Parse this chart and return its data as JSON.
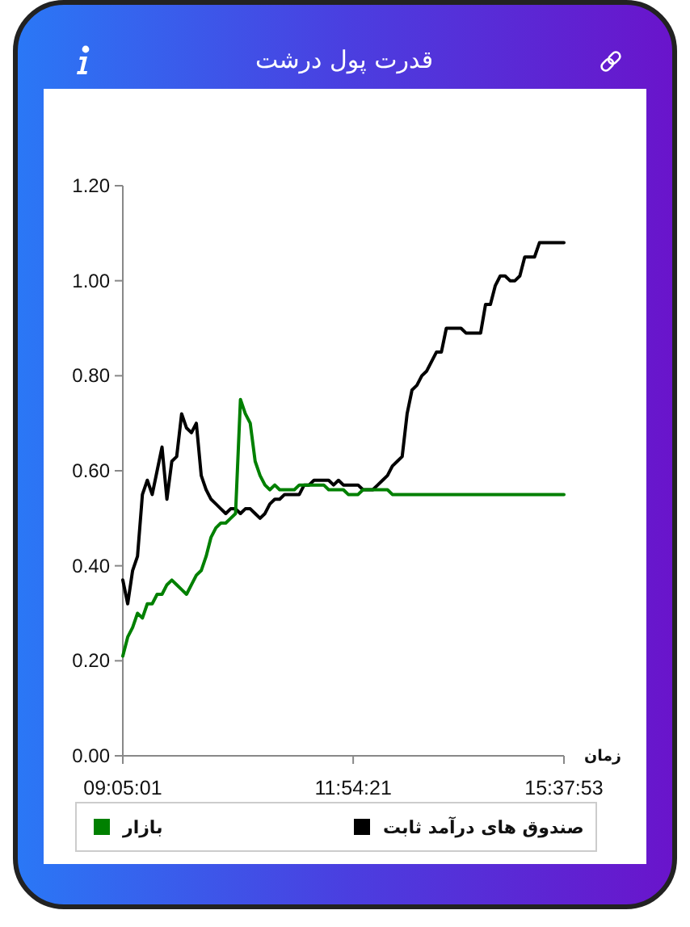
{
  "chart_data": {
    "type": "line",
    "title": "قدرت پول درشت",
    "xlabel": "زمان",
    "categories": [
      "09:05:01",
      null,
      null,
      null,
      null,
      null,
      null,
      null,
      null,
      null,
      null,
      null,
      null,
      null,
      null,
      null,
      null,
      null,
      null,
      null,
      null,
      null,
      null,
      null,
      null,
      null,
      null,
      null,
      null,
      null,
      null,
      null,
      null,
      null,
      null,
      null,
      null,
      null,
      null,
      null,
      null,
      null,
      null,
      null,
      null,
      null,
      null,
      "11:54:21",
      null,
      null,
      null,
      null,
      null,
      null,
      null,
      null,
      null,
      null,
      null,
      null,
      null,
      null,
      null,
      null,
      null,
      null,
      null,
      null,
      null,
      null,
      null,
      null,
      null,
      null,
      null,
      null,
      null,
      null,
      null,
      null,
      null,
      null,
      null,
      null,
      null,
      null,
      null,
      null,
      null,
      null,
      "15:37:53"
    ],
    "series": [
      {
        "name": "صندوق های درآمد ثابت",
        "color": "#000000",
        "values": [
          0.37,
          0.32,
          0.39,
          0.42,
          0.55,
          0.58,
          0.55,
          0.6,
          0.65,
          0.54,
          0.62,
          0.63,
          0.72,
          0.69,
          0.68,
          0.7,
          0.59,
          0.56,
          0.54,
          0.53,
          0.52,
          0.51,
          0.52,
          0.52,
          0.51,
          0.52,
          0.52,
          0.51,
          0.5,
          0.51,
          0.53,
          0.54,
          0.54,
          0.55,
          0.55,
          0.55,
          0.55,
          0.57,
          0.57,
          0.58,
          0.58,
          0.58,
          0.58,
          0.57,
          0.58,
          0.57,
          0.57,
          0.57,
          0.57,
          0.56,
          0.56,
          0.56,
          0.57,
          0.58,
          0.59,
          0.61,
          0.62,
          0.63,
          0.72,
          0.77,
          0.78,
          0.8,
          0.81,
          0.83,
          0.85,
          0.85,
          0.9,
          0.9,
          0.9,
          0.9,
          0.89,
          0.89,
          0.89,
          0.89,
          0.95,
          0.95,
          0.99,
          1.01,
          1.01,
          1.0,
          1.0,
          1.01,
          1.05,
          1.05,
          1.05,
          1.08,
          1.08,
          1.08,
          1.08,
          1.08,
          1.08
        ]
      },
      {
        "name": "بازار",
        "color": "#008000",
        "values": [
          0.21,
          0.25,
          0.27,
          0.3,
          0.29,
          0.32,
          0.32,
          0.34,
          0.34,
          0.36,
          0.37,
          0.36,
          0.35,
          0.34,
          0.36,
          0.38,
          0.39,
          0.42,
          0.46,
          0.48,
          0.49,
          0.49,
          0.5,
          0.51,
          0.75,
          0.72,
          0.7,
          0.62,
          0.59,
          0.57,
          0.56,
          0.57,
          0.56,
          0.56,
          0.56,
          0.56,
          0.57,
          0.57,
          0.57,
          0.57,
          0.57,
          0.57,
          0.56,
          0.56,
          0.56,
          0.56,
          0.55,
          0.55,
          0.55,
          0.56,
          0.56,
          0.56,
          0.56,
          0.56,
          0.56,
          0.55,
          0.55,
          0.55,
          0.55,
          0.55,
          0.55,
          0.55,
          0.55,
          0.55,
          0.55,
          0.55,
          0.55,
          0.55,
          0.55,
          0.55,
          0.55,
          0.55,
          0.55,
          0.55,
          0.55,
          0.55,
          0.55,
          0.55,
          0.55,
          0.55,
          0.55,
          0.55,
          0.55,
          0.55,
          0.55,
          0.55,
          0.55,
          0.55,
          0.55,
          0.55,
          0.55
        ]
      }
    ],
    "ylim": [
      0,
      1.2
    ],
    "yticks": [
      {
        "value": 0,
        "label": "0.00"
      },
      {
        "value": 0.2,
        "label": "0.20"
      },
      {
        "value": 0.4,
        "label": "0.40"
      },
      {
        "value": 0.6,
        "label": "0.60"
      },
      {
        "value": 0.8,
        "label": "0.80"
      },
      {
        "value": 1,
        "label": "1.00"
      },
      {
        "value": 1.2,
        "label": "1.20"
      }
    ],
    "legend": "bottom"
  }
}
